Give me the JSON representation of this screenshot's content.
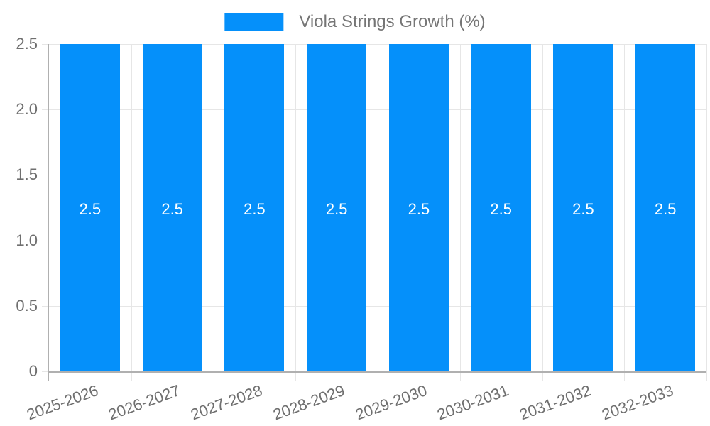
{
  "legend": {
    "label": "Viola Strings Growth (%)",
    "swatch_color": "#0590FA"
  },
  "chart_data": {
    "type": "bar",
    "title": "Viola Strings Growth (%)",
    "categories": [
      "2025-2026",
      "2026-2027",
      "2027-2028",
      "2028-2029",
      "2029-2030",
      "2030-2031",
      "2031-2032",
      "2032-2033"
    ],
    "series": [
      {
        "name": "Viola Strings Growth (%)",
        "values": [
          2.5,
          2.5,
          2.5,
          2.5,
          2.5,
          2.5,
          2.5,
          2.5
        ]
      }
    ],
    "bar_value_labels": [
      "2.5",
      "2.5",
      "2.5",
      "2.5",
      "2.5",
      "2.5",
      "2.5",
      "2.5"
    ],
    "xlabel": "",
    "ylabel": "",
    "ylim": [
      0,
      2.5
    ],
    "yticks": [
      {
        "value": 0,
        "label": "0"
      },
      {
        "value": 0.5,
        "label": "0.5"
      },
      {
        "value": 1,
        "label": "1.0"
      },
      {
        "value": 1.5,
        "label": "1.5"
      },
      {
        "value": 2,
        "label": "2.0"
      },
      {
        "value": 2.5,
        "label": "2.5"
      }
    ],
    "grid": true,
    "legend_position": "top",
    "bar_color": "#0590FA",
    "colors": {
      "grid": "#e6e6e6",
      "axis": "#b0b0b0",
      "tick_text": "#6f6f6f",
      "legend_text": "#757575",
      "bar_label_text": "#ffffff",
      "background": "#ffffff"
    }
  }
}
